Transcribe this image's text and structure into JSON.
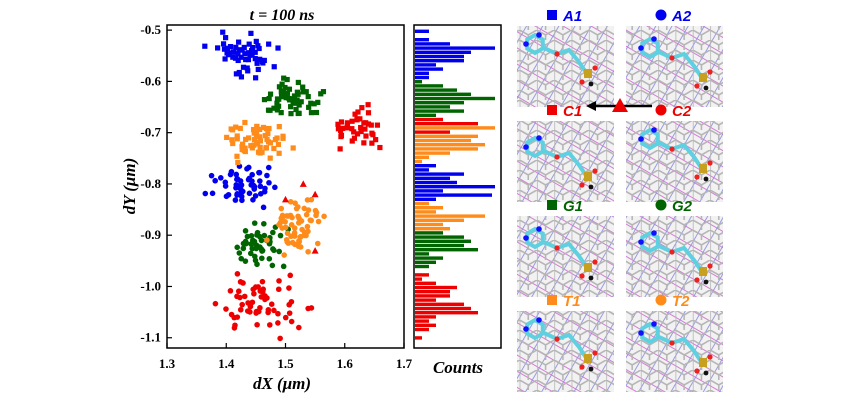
{
  "chart_data": {
    "type": "scatter",
    "title": "t = 100 ns",
    "xlabel": "dX (μm)",
    "ylabel": "dY (μm)",
    "xlim": [
      1.3,
      1.7
    ],
    "ylim": [
      -1.12,
      -0.49
    ],
    "xticks": [
      "1.3",
      "1.4",
      "1.5",
      "1.6",
      "1.7"
    ],
    "yticks": [
      "-0.5",
      "-0.6",
      "-0.7",
      "-0.8",
      "-0.9",
      "-1.0",
      "-1.1"
    ],
    "histogram_label": "Counts",
    "series": [
      {
        "name": "A1",
        "marker": "square",
        "color": "#0000ee",
        "center": [
          1.43,
          -0.55
        ],
        "spread": [
          0.025,
          0.02
        ],
        "n": 55
      },
      {
        "name": "A2",
        "marker": "circle",
        "color": "#0000ee",
        "center": [
          1.43,
          -0.8
        ],
        "spread": [
          0.025,
          0.018
        ],
        "n": 55
      },
      {
        "name": "C1",
        "marker": "square",
        "color": "#ee0000",
        "center": [
          1.62,
          -0.69
        ],
        "spread": [
          0.025,
          0.018
        ],
        "n": 40
      },
      {
        "name": "C2",
        "marker": "circle",
        "color": "#ee0000",
        "center": [
          1.47,
          -1.04
        ],
        "spread": [
          0.035,
          0.025
        ],
        "n": 60
      },
      {
        "name": "G1",
        "marker": "square",
        "color": "#006400",
        "center": [
          1.51,
          -0.635
        ],
        "spread": [
          0.025,
          0.018
        ],
        "n": 55
      },
      {
        "name": "G2",
        "marker": "circle",
        "color": "#006400",
        "center": [
          1.45,
          -0.92
        ],
        "spread": [
          0.022,
          0.02
        ],
        "n": 50
      },
      {
        "name": "T1",
        "marker": "square",
        "color": "#ff8c1a",
        "center": [
          1.45,
          -0.72
        ],
        "spread": [
          0.025,
          0.02
        ],
        "n": 60
      },
      {
        "name": "T2",
        "marker": "circle",
        "color": "#ff8c1a",
        "center": [
          1.52,
          -0.88
        ],
        "spread": [
          0.022,
          0.025
        ],
        "n": 60
      }
    ],
    "transition_points": [
      [
        1.53,
        -0.8
      ],
      [
        1.55,
        -0.82
      ],
      [
        1.5,
        -0.83
      ],
      [
        1.55,
        -0.93
      ]
    ],
    "legend_placement": "right panels"
  },
  "panels": [
    {
      "label": "A1",
      "marker": "square",
      "color": "#0000ee"
    },
    {
      "label": "A2",
      "marker": "circle",
      "color": "#0000ee"
    },
    {
      "label": "C1",
      "marker": "square",
      "color": "#ee0000"
    },
    {
      "label": "C2",
      "marker": "circle",
      "color": "#ee0000"
    },
    {
      "label": "G1",
      "marker": "square",
      "color": "#006400"
    },
    {
      "label": "G2",
      "marker": "circle",
      "color": "#006400"
    },
    {
      "label": "T1",
      "marker": "square",
      "color": "#ff8c1a"
    },
    {
      "label": "T2",
      "marker": "circle",
      "color": "#ff8c1a"
    }
  ]
}
